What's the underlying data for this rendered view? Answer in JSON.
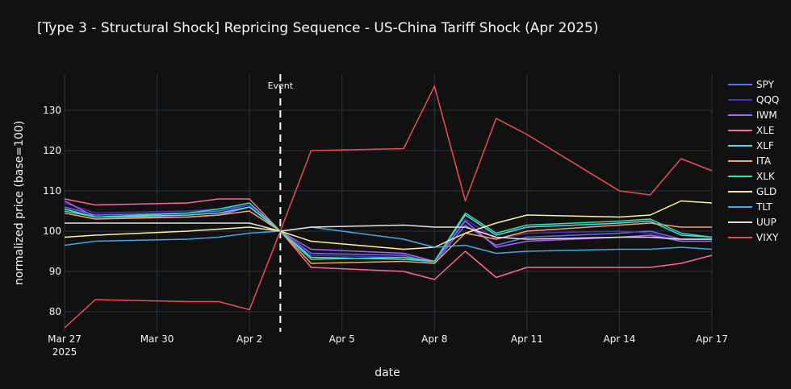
{
  "chart_data": {
    "type": "line",
    "title": "[Type 3 - Structural Shock] Repricing Sequence - US-China Tariff Shock (Apr 2025)",
    "xlabel": "date",
    "ylabel": "normalized price (base=100)",
    "x": [
      "2025-03-27",
      "2025-03-28",
      "2025-03-31",
      "2025-04-01",
      "2025-04-02",
      "2025-04-03",
      "2025-04-04",
      "2025-04-07",
      "2025-04-08",
      "2025-04-09",
      "2025-04-10",
      "2025-04-11",
      "2025-04-14",
      "2025-04-15",
      "2025-04-16",
      "2025-04-17"
    ],
    "x_ticks": [
      {
        "date": "2025-03-27",
        "label": "Mar 27",
        "sublabel": "2025"
      },
      {
        "date": "2025-03-30",
        "label": "Mar 30"
      },
      {
        "date": "2025-04-02",
        "label": "Apr 2"
      },
      {
        "date": "2025-04-05",
        "label": "Apr 5"
      },
      {
        "date": "2025-04-08",
        "label": "Apr 8"
      },
      {
        "date": "2025-04-11",
        "label": "Apr 11"
      },
      {
        "date": "2025-04-14",
        "label": "Apr 14"
      },
      {
        "date": "2025-04-17",
        "label": "Apr 17"
      }
    ],
    "xlim": [
      "2025-03-27",
      "2025-04-17"
    ],
    "ylim": [
      75,
      139
    ],
    "y_ticks": [
      80,
      90,
      100,
      110,
      120,
      130
    ],
    "grid": true,
    "legend": "right",
    "event": {
      "date": "2025-04-03",
      "label": "Event"
    },
    "series": [
      {
        "name": "SPY",
        "color": "#636efa",
        "values": [
          106.0,
          104.0,
          104.5,
          105.0,
          106.5,
          100,
          94.5,
          94.0,
          92.0,
          101.5,
          96.5,
          98.5,
          99.5,
          100.0,
          98.0,
          98.0
        ]
      },
      {
        "name": "QQQ",
        "color": "#4b2fb5",
        "values": [
          107.0,
          104.5,
          105.0,
          105.5,
          106.5,
          100,
          94.0,
          93.5,
          92.0,
          103.0,
          98.0,
          99.5,
          100.0,
          99.5,
          97.5,
          97.5
        ]
      },
      {
        "name": "IWM",
        "color": "#ab63fa",
        "values": [
          107.5,
          103.5,
          103.5,
          104.0,
          106.0,
          100,
          95.5,
          94.5,
          92.5,
          102.5,
          96.0,
          97.5,
          98.5,
          99.0,
          97.5,
          97.5
        ]
      },
      {
        "name": "XLE",
        "color": "#ff6692",
        "values": [
          108.0,
          106.5,
          107.0,
          108.0,
          108.0,
          100,
          91.0,
          90.0,
          88.0,
          95.0,
          88.5,
          91.0,
          91.0,
          91.0,
          92.0,
          94.0
        ]
      },
      {
        "name": "XLF",
        "color": "#5ad8f0",
        "values": [
          105.5,
          103.5,
          104.0,
          104.5,
          106.0,
          100,
          93.5,
          93.0,
          92.5,
          104.0,
          99.0,
          101.0,
          102.0,
          102.5,
          99.0,
          98.5
        ]
      },
      {
        "name": "ITA",
        "color": "#ffa15a",
        "values": [
          104.5,
          103.0,
          103.5,
          104.0,
          105.0,
          100,
          92.0,
          92.5,
          92.0,
          99.5,
          98.0,
          100.0,
          101.5,
          102.0,
          101.0,
          101.0
        ]
      },
      {
        "name": "XLK",
        "color": "#2ee6a6",
        "values": [
          105.0,
          103.5,
          104.5,
          105.5,
          107.0,
          100,
          93.0,
          93.5,
          92.5,
          104.5,
          99.5,
          101.5,
          102.5,
          103.0,
          99.5,
          98.5
        ]
      },
      {
        "name": "GLD",
        "color": "#fff09a",
        "values": [
          98.5,
          99.0,
          100.0,
          100.5,
          101.0,
          100,
          97.5,
          95.5,
          96.0,
          99.5,
          102.0,
          104.0,
          103.5,
          104.0,
          107.5,
          107.0
        ]
      },
      {
        "name": "TLT",
        "color": "#3fa9e8",
        "values": [
          96.5,
          97.5,
          98.0,
          98.5,
          99.5,
          100,
          101.0,
          98.0,
          96.0,
          96.5,
          94.5,
          95.0,
          95.5,
          95.5,
          96.0,
          95.5
        ]
      },
      {
        "name": "UUP",
        "color": "#e2e2e2",
        "values": [
          102.0,
          102.0,
          102.0,
          102.0,
          102.0,
          100,
          101.0,
          101.5,
          101.0,
          101.0,
          98.5,
          98.0,
          98.5,
          98.5,
          98.0,
          98.0
        ]
      },
      {
        "name": "VIXY",
        "color": "#ef4a55",
        "values": [
          76.0,
          83.0,
          82.5,
          82.5,
          80.5,
          100,
          120.0,
          120.5,
          136.0,
          107.5,
          128.0,
          124.0,
          110.0,
          109.0,
          118.0,
          115.0
        ]
      }
    ]
  }
}
